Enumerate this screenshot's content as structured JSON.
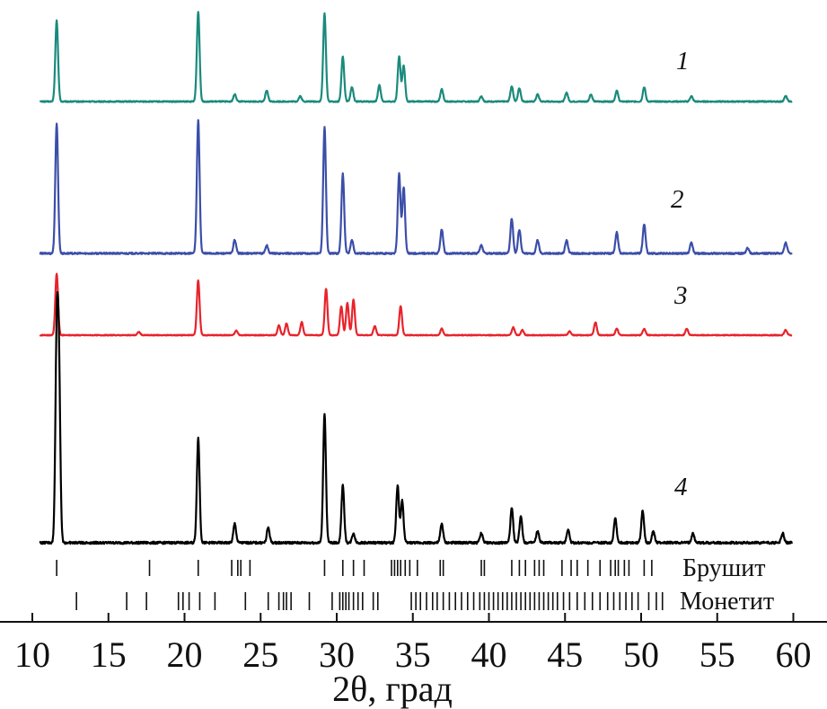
{
  "chart_data": {
    "type": "line",
    "xlabel": "2θ, град",
    "ylabel": "",
    "xlim": [
      9,
      61
    ],
    "x_ticks": [
      10,
      15,
      20,
      25,
      30,
      35,
      40,
      45,
      50,
      55,
      60
    ],
    "grid": false,
    "series_baseline_x_range": [
      10.5,
      59.9
    ],
    "series": [
      {
        "name": "1",
        "color": "#1a8a7c",
        "peaks": [
          [
            11.6,
            0.9
          ],
          [
            20.9,
            1.0
          ],
          [
            23.3,
            0.08
          ],
          [
            25.4,
            0.12
          ],
          [
            27.6,
            0.06
          ],
          [
            29.2,
            0.98
          ],
          [
            30.4,
            0.5
          ],
          [
            31.0,
            0.16
          ],
          [
            32.8,
            0.18
          ],
          [
            34.1,
            0.5
          ],
          [
            34.4,
            0.4
          ],
          [
            36.9,
            0.14
          ],
          [
            39.5,
            0.06
          ],
          [
            41.5,
            0.17
          ],
          [
            42.0,
            0.15
          ],
          [
            43.2,
            0.08
          ],
          [
            45.1,
            0.1
          ],
          [
            46.7,
            0.08
          ],
          [
            48.4,
            0.12
          ],
          [
            50.2,
            0.16
          ],
          [
            53.3,
            0.06
          ],
          [
            59.5,
            0.06
          ]
        ]
      },
      {
        "name": "2",
        "color": "#3b4ea8",
        "peaks": [
          [
            11.6,
            0.98
          ],
          [
            20.9,
            1.0
          ],
          [
            23.3,
            0.1
          ],
          [
            25.4,
            0.06
          ],
          [
            29.2,
            0.95
          ],
          [
            30.4,
            0.6
          ],
          [
            31.0,
            0.1
          ],
          [
            34.1,
            0.6
          ],
          [
            34.4,
            0.5
          ],
          [
            36.9,
            0.18
          ],
          [
            39.5,
            0.06
          ],
          [
            41.5,
            0.26
          ],
          [
            42.0,
            0.18
          ],
          [
            43.2,
            0.1
          ],
          [
            45.1,
            0.1
          ],
          [
            48.4,
            0.16
          ],
          [
            50.2,
            0.22
          ],
          [
            53.3,
            0.08
          ],
          [
            57.0,
            0.04
          ],
          [
            59.5,
            0.08
          ]
        ]
      },
      {
        "name": "3",
        "color": "#e8232b",
        "peaks": [
          [
            11.6,
            0.95
          ],
          [
            17.0,
            0.05
          ],
          [
            20.9,
            0.85
          ],
          [
            23.4,
            0.07
          ],
          [
            26.2,
            0.15
          ],
          [
            26.7,
            0.18
          ],
          [
            27.7,
            0.2
          ],
          [
            29.3,
            0.72
          ],
          [
            30.3,
            0.45
          ],
          [
            30.7,
            0.5
          ],
          [
            31.1,
            0.55
          ],
          [
            32.5,
            0.14
          ],
          [
            34.2,
            0.45
          ],
          [
            36.9,
            0.1
          ],
          [
            41.6,
            0.12
          ],
          [
            42.2,
            0.08
          ],
          [
            45.3,
            0.06
          ],
          [
            47.0,
            0.2
          ],
          [
            48.4,
            0.1
          ],
          [
            50.2,
            0.1
          ],
          [
            53.0,
            0.1
          ],
          [
            59.5,
            0.08
          ]
        ]
      },
      {
        "name": "4",
        "color": "#000000",
        "peaks": [
          [
            11.6,
            1.0
          ],
          [
            11.75,
            0.85
          ],
          [
            20.9,
            0.55
          ],
          [
            23.3,
            0.1
          ],
          [
            25.5,
            0.08
          ],
          [
            29.2,
            0.68
          ],
          [
            30.4,
            0.3
          ],
          [
            31.1,
            0.05
          ],
          [
            34.0,
            0.3
          ],
          [
            34.3,
            0.22
          ],
          [
            36.9,
            0.1
          ],
          [
            39.5,
            0.05
          ],
          [
            41.5,
            0.18
          ],
          [
            42.1,
            0.14
          ],
          [
            43.2,
            0.06
          ],
          [
            45.2,
            0.07
          ],
          [
            48.3,
            0.13
          ],
          [
            50.1,
            0.17
          ],
          [
            50.8,
            0.06
          ],
          [
            53.4,
            0.05
          ],
          [
            59.3,
            0.05
          ]
        ]
      }
    ],
    "phase_markers": [
      {
        "name": "Брушит",
        "positions": [
          11.6,
          17.7,
          20.9,
          23.1,
          23.5,
          23.7,
          24.3,
          29.2,
          30.4,
          31.1,
          31.8,
          33.6,
          33.8,
          34.0,
          34.2,
          34.5,
          34.8,
          35.3,
          36.8,
          37.0,
          39.5,
          39.7,
          41.5,
          42.0,
          42.4,
          43.0,
          43.3,
          43.6,
          44.8,
          45.4,
          45.8,
          46.5,
          47.3,
          48.0,
          48.3,
          48.5,
          48.9,
          49.2,
          50.2,
          50.7
        ]
      },
      {
        "name": "Монетит",
        "positions": [
          12.9,
          16.2,
          17.5,
          19.6,
          19.9,
          20.3,
          21.0,
          22.0,
          24.0,
          25.5,
          26.2,
          26.5,
          26.7,
          27.0,
          28.2,
          29.7,
          30.2,
          30.4,
          30.6,
          30.8,
          31.1,
          31.4,
          31.7,
          32.4,
          32.7,
          34.9,
          35.2,
          35.5,
          35.9,
          36.3,
          36.6,
          37.0,
          37.4,
          37.8,
          38.2,
          38.6,
          39.0,
          39.4,
          39.7,
          40.0,
          40.3,
          40.6,
          40.9,
          41.2,
          41.5,
          41.8,
          42.1,
          42.4,
          42.7,
          43.0,
          43.3,
          43.6,
          43.9,
          44.2,
          44.5,
          44.9,
          45.3,
          45.8,
          46.3,
          46.8,
          47.3,
          47.8,
          48.2,
          48.6,
          49.0,
          49.4,
          49.8,
          50.5,
          51.0,
          51.4
        ]
      }
    ]
  }
}
